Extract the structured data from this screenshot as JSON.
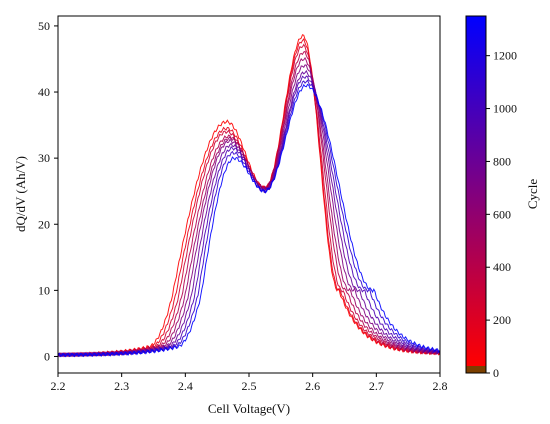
{
  "chart_data": {
    "type": "line",
    "xlabel": "Cell Voltage(V)",
    "ylabel": "dQ/dV (Ah/V)",
    "xlim": [
      2.2,
      2.8
    ],
    "ylim": [
      -2.5,
      51.5
    ],
    "x_ticks": [
      "2.2",
      "2.3",
      "2.4",
      "2.5",
      "2.6",
      "2.7",
      "2.8"
    ],
    "y_ticks": [
      "0",
      "10",
      "20",
      "30",
      "40",
      "50"
    ],
    "grid": false,
    "legend": "none",
    "colorbar": {
      "label": "Cycle",
      "range": [
        0,
        1350
      ],
      "ticks": [
        "0",
        "200",
        "400",
        "600",
        "800",
        "1000",
        "1200"
      ],
      "colors": {
        "start": "#ff0000",
        "mid": "#800080",
        "end": "#0000ff"
      },
      "bottom_strip_color": "#7b3f00"
    },
    "series_note_hidden": true,
    "series": [
      {
        "cycle": 0,
        "color": "#ff0000",
        "peak1": {
          "x": 2.465,
          "y": 35.5
        },
        "valley": {
          "x": 2.525,
          "y": 25.5
        },
        "peak2": {
          "x": 2.585,
          "y": 48.5
        },
        "rise_x": 2.38,
        "fall_x": 2.64
      },
      {
        "cycle": 150,
        "color": "#e6001a",
        "peak1": {
          "x": 2.465,
          "y": 34.5
        },
        "valley": {
          "x": 2.525,
          "y": 25.5
        },
        "peak2": {
          "x": 2.585,
          "y": 47.8
        },
        "rise_x": 2.385,
        "fall_x": 2.642
      },
      {
        "cycle": 300,
        "color": "#cc0033",
        "peak1": {
          "x": 2.465,
          "y": 34.0
        },
        "valley": {
          "x": 2.525,
          "y": 25.5
        },
        "peak2": {
          "x": 2.585,
          "y": 47.0
        },
        "rise_x": 2.39,
        "fall_x": 2.646
      },
      {
        "cycle": 450,
        "color": "#b3004d",
        "peak1": {
          "x": 2.468,
          "y": 33.3
        },
        "valley": {
          "x": 2.525,
          "y": 25.5
        },
        "peak2": {
          "x": 2.586,
          "y": 46.0
        },
        "rise_x": 2.395,
        "fall_x": 2.652
      },
      {
        "cycle": 600,
        "color": "#990066",
        "peak1": {
          "x": 2.47,
          "y": 33.0
        },
        "valley": {
          "x": 2.525,
          "y": 25.4
        },
        "peak2": {
          "x": 2.586,
          "y": 45.0
        },
        "rise_x": 2.4,
        "fall_x": 2.658
      },
      {
        "cycle": 750,
        "color": "#800080",
        "peak1": {
          "x": 2.47,
          "y": 32.6
        },
        "valley": {
          "x": 2.525,
          "y": 25.3
        },
        "peak2": {
          "x": 2.587,
          "y": 44.0
        },
        "rise_x": 2.405,
        "fall_x": 2.665
      },
      {
        "cycle": 900,
        "color": "#660099",
        "peak1": {
          "x": 2.472,
          "y": 32.0
        },
        "valley": {
          "x": 2.525,
          "y": 25.2
        },
        "peak2": {
          "x": 2.588,
          "y": 43.0
        },
        "rise_x": 2.41,
        "fall_x": 2.672
      },
      {
        "cycle": 1050,
        "color": "#4d00b3",
        "peak1": {
          "x": 2.474,
          "y": 31.5
        },
        "valley": {
          "x": 2.525,
          "y": 25.0
        },
        "peak2": {
          "x": 2.588,
          "y": 42.3
        },
        "rise_x": 2.415,
        "fall_x": 2.68
      },
      {
        "cycle": 1200,
        "color": "#3300cc",
        "peak1": {
          "x": 2.475,
          "y": 30.8
        },
        "valley": {
          "x": 2.525,
          "y": 25.0
        },
        "peak2": {
          "x": 2.589,
          "y": 41.6
        },
        "rise_x": 2.42,
        "fall_x": 2.688
      },
      {
        "cycle": 1350,
        "color": "#0000ff",
        "peak1": {
          "x": 2.477,
          "y": 30.0
        },
        "valley": {
          "x": 2.525,
          "y": 25.0
        },
        "peak2": {
          "x": 2.59,
          "y": 41.0
        },
        "rise_x": 2.425,
        "fall_x": 2.695
      }
    ]
  }
}
